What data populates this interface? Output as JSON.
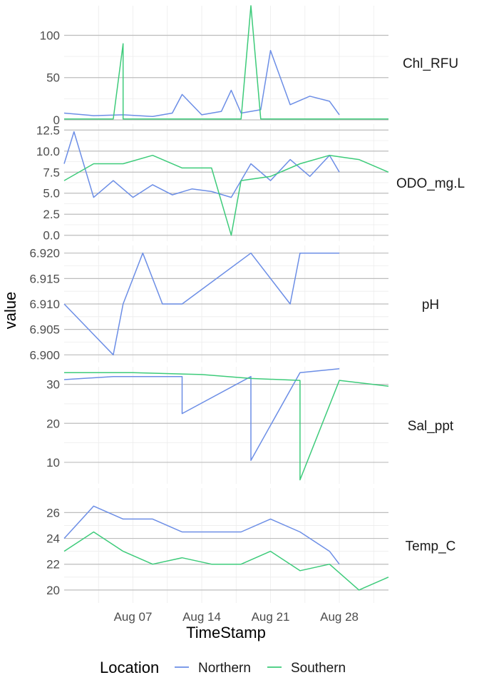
{
  "chart_data": {
    "type": "line",
    "xlabel": "TimeStamp",
    "ylabel": "value",
    "x_range": [
      "2022-07-31",
      "2022-09-02"
    ],
    "x_ticks": [
      "Aug 07",
      "Aug 14",
      "Aug 21",
      "Aug 28"
    ],
    "x_tick_dates": [
      "2022-08-07",
      "2022-08-14",
      "2022-08-21",
      "2022-08-28"
    ],
    "grid": true,
    "legend": {
      "title": "Location",
      "placement": "bottom",
      "entries": [
        {
          "name": "Northern",
          "color": "#6C8EE6"
        },
        {
          "name": "Southern",
          "color": "#3DCB7A"
        }
      ]
    },
    "facets": [
      {
        "label": "Chl_RFU",
        "ylim": [
          0,
          135
        ],
        "y_ticks": [
          0,
          50,
          100
        ],
        "y_tick_labels": [
          "0",
          "50",
          "100"
        ],
        "series": [
          {
            "name": "Northern",
            "x": [
              "2022-07-31",
              "2022-08-03",
              "2022-08-06",
              "2022-08-09",
              "2022-08-11",
              "2022-08-12",
              "2022-08-14",
              "2022-08-16",
              "2022-08-17",
              "2022-08-18",
              "2022-08-20",
              "2022-08-21",
              "2022-08-23",
              "2022-08-25",
              "2022-08-27",
              "2022-08-28"
            ],
            "y": [
              8,
              5,
              6,
              4,
              8,
              30,
              6,
              10,
              35,
              8,
              12,
              82,
              18,
              28,
              22,
              6
            ]
          },
          {
            "name": "Southern",
            "x": [
              "2022-07-31",
              "2022-08-05",
              "2022-08-06",
              "2022-08-06",
              "2022-08-12",
              "2022-08-18",
              "2022-08-19",
              "2022-08-20",
              "2022-08-25",
              "2022-09-02"
            ],
            "y": [
              1,
              1,
              90,
              1,
              1,
              1,
              135,
              1,
              1,
              1
            ]
          }
        ]
      },
      {
        "label": "ODO_mg.L",
        "ylim": [
          -0.7,
          13.2
        ],
        "y_ticks": [
          0,
          2.5,
          5,
          7.5,
          10,
          12.5
        ],
        "y_tick_labels": [
          "0.0",
          "2.5",
          "5.0",
          "7.5",
          "10.0",
          "12.5"
        ],
        "series": [
          {
            "name": "Northern",
            "x": [
              "2022-07-31",
              "2022-08-01",
              "2022-08-03",
              "2022-08-05",
              "2022-08-07",
              "2022-08-09",
              "2022-08-11",
              "2022-08-13",
              "2022-08-15",
              "2022-08-17",
              "2022-08-19",
              "2022-08-21",
              "2022-08-23",
              "2022-08-25",
              "2022-08-27",
              "2022-08-28"
            ],
            "y": [
              8.5,
              12.3,
              4.5,
              6.5,
              4.5,
              6,
              4.8,
              5.5,
              5.2,
              4.5,
              8.5,
              6.5,
              9,
              7,
              9.5,
              7.5
            ]
          },
          {
            "name": "Southern",
            "x": [
              "2022-07-31",
              "2022-08-03",
              "2022-08-06",
              "2022-08-09",
              "2022-08-12",
              "2022-08-15",
              "2022-08-17",
              "2022-08-18",
              "2022-08-21",
              "2022-08-24",
              "2022-08-27",
              "2022-08-30",
              "2022-09-02"
            ],
            "y": [
              6.5,
              8.5,
              8.5,
              9.5,
              8,
              8,
              0,
              6.5,
              7,
              8.5,
              9.5,
              9,
              7.5
            ]
          }
        ]
      },
      {
        "label": "pH",
        "ylim": [
          6.8985,
          6.9215
        ],
        "y_ticks": [
          6.9,
          6.905,
          6.91,
          6.915,
          6.92
        ],
        "y_tick_labels": [
          "6.900",
          "6.905",
          "6.910",
          "6.915",
          "6.920"
        ],
        "series": [
          {
            "name": "Northern",
            "x": [
              "2022-07-31",
              "2022-08-05",
              "2022-08-06",
              "2022-08-08",
              "2022-08-10",
              "2022-08-12",
              "2022-08-19",
              "2022-08-23",
              "2022-08-24",
              "2022-08-28"
            ],
            "y": [
              6.91,
              6.9,
              6.91,
              6.92,
              6.91,
              6.91,
              6.92,
              6.91,
              6.92,
              6.92
            ]
          }
        ]
      },
      {
        "label": "Sal_ppt",
        "ylim": [
          4.5,
          34.5
        ],
        "y_ticks": [
          10,
          20,
          30
        ],
        "y_tick_labels": [
          "10",
          "20",
          "30"
        ],
        "series": [
          {
            "name": "Northern",
            "x": [
              "2022-07-31",
              "2022-08-05",
              "2022-08-12",
              "2022-08-12",
              "2022-08-19",
              "2022-08-19",
              "2022-08-24",
              "2022-08-28"
            ],
            "y": [
              31.2,
              32,
              32,
              22.5,
              32,
              10.5,
              33,
              34
            ]
          },
          {
            "name": "Southern",
            "x": [
              "2022-07-31",
              "2022-08-07",
              "2022-08-14",
              "2022-08-19",
              "2022-08-24",
              "2022-08-24",
              "2022-08-28",
              "2022-09-02"
            ],
            "y": [
              33,
              33,
              32.5,
              31.5,
              31,
              5.5,
              31,
              29.5
            ]
          }
        ]
      },
      {
        "label": "Temp_C",
        "ylim": [
          19,
          27.9
        ],
        "y_ticks": [
          20,
          22,
          24,
          26
        ],
        "y_tick_labels": [
          "20",
          "22",
          "24",
          "26"
        ],
        "series": [
          {
            "name": "Northern",
            "x": [
              "2022-07-31",
              "2022-08-03",
              "2022-08-06",
              "2022-08-09",
              "2022-08-12",
              "2022-08-15",
              "2022-08-18",
              "2022-08-21",
              "2022-08-24",
              "2022-08-27",
              "2022-08-28"
            ],
            "y": [
              24,
              26.5,
              25.5,
              25.5,
              24.5,
              24.5,
              24.5,
              25.5,
              24.5,
              23,
              22
            ]
          },
          {
            "name": "Southern",
            "x": [
              "2022-07-31",
              "2022-08-03",
              "2022-08-06",
              "2022-08-09",
              "2022-08-12",
              "2022-08-15",
              "2022-08-18",
              "2022-08-21",
              "2022-08-24",
              "2022-08-27",
              "2022-08-30",
              "2022-09-02"
            ],
            "y": [
              23,
              24.5,
              23,
              22,
              22.5,
              22,
              22,
              23,
              21.5,
              22,
              20,
              21
            ]
          }
        ]
      }
    ]
  }
}
